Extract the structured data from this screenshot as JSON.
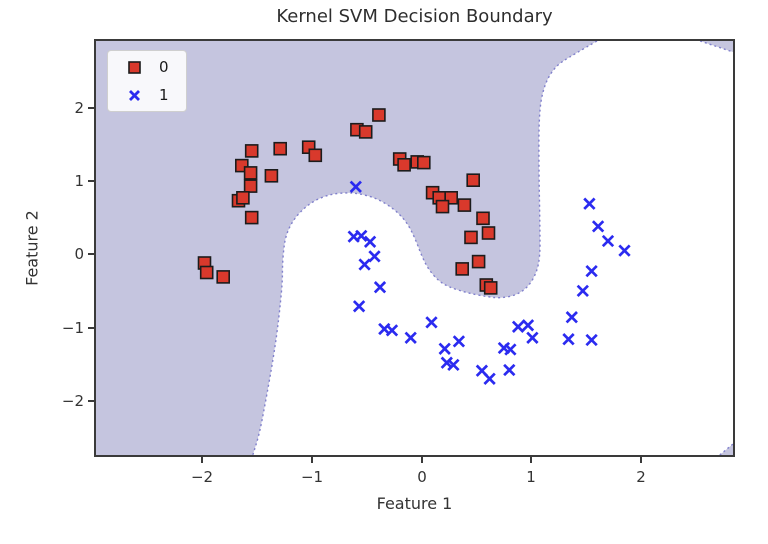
{
  "figure": {
    "title": "Kernel SVM Decision Boundary"
  },
  "axes": {
    "xlabel": "Feature 1",
    "ylabel": "Feature 2",
    "x_ticks": [
      "−2",
      "−1",
      "0",
      "1",
      "2"
    ],
    "y_ticks": [
      "2",
      "1",
      "0",
      "−1",
      "−2"
    ]
  },
  "legend": {
    "items": [
      {
        "label": "0",
        "marker": "square-icon",
        "color": "#d9392c"
      },
      {
        "label": "1",
        "marker": "x-icon",
        "color": "#2b2bf0"
      }
    ]
  },
  "chart_data": {
    "type": "scatter",
    "title": "Kernel SVM Decision Boundary",
    "xlabel": "Feature 1",
    "ylabel": "Feature 2",
    "xlim": [
      -2.97,
      2.84
    ],
    "ylim": [
      -2.74,
      2.91
    ],
    "x_tick_values": [
      -2,
      -1,
      0,
      1,
      2
    ],
    "y_tick_values": [
      2,
      1,
      0,
      -1,
      -2
    ],
    "grid": false,
    "legend_position": "upper left",
    "series": [
      {
        "name": "0",
        "marker": "square",
        "color": "#d9392c",
        "edge_color": "#1c1c1c",
        "points": [
          [
            -1.55,
            1.41
          ],
          [
            -1.29,
            1.44
          ],
          [
            -1.64,
            1.21
          ],
          [
            -1.56,
            1.11
          ],
          [
            -1.37,
            1.07
          ],
          [
            -1.56,
            0.93
          ],
          [
            -1.67,
            0.73
          ],
          [
            -1.63,
            0.77
          ],
          [
            -1.55,
            0.5
          ],
          [
            -1.03,
            1.46
          ],
          [
            -0.97,
            1.35
          ],
          [
            -1.98,
            -0.12
          ],
          [
            -1.96,
            -0.25
          ],
          [
            -1.81,
            -0.31
          ],
          [
            -0.39,
            1.9
          ],
          [
            -0.59,
            1.7
          ],
          [
            -0.51,
            1.67
          ],
          [
            -0.2,
            1.3
          ],
          [
            -0.16,
            1.22
          ],
          [
            -0.04,
            1.26
          ],
          [
            0.02,
            1.25
          ],
          [
            0.47,
            1.01
          ],
          [
            0.1,
            0.84
          ],
          [
            0.16,
            0.77
          ],
          [
            0.27,
            0.77
          ],
          [
            0.19,
            0.65
          ],
          [
            0.39,
            0.67
          ],
          [
            0.56,
            0.49
          ],
          [
            0.45,
            0.23
          ],
          [
            0.61,
            0.29
          ],
          [
            0.52,
            -0.1
          ],
          [
            0.37,
            -0.2
          ],
          [
            0.59,
            -0.42
          ],
          [
            0.63,
            -0.46
          ]
        ]
      },
      {
        "name": "1",
        "marker": "x",
        "color": "#2b2bf0",
        "points": [
          [
            -0.6,
            0.92
          ],
          [
            -0.62,
            0.24
          ],
          [
            -0.55,
            0.25
          ],
          [
            -0.47,
            0.17
          ],
          [
            -0.43,
            -0.03
          ],
          [
            -0.52,
            -0.14
          ],
          [
            -0.38,
            -0.45
          ],
          [
            -0.57,
            -0.71
          ],
          [
            -0.34,
            -1.02
          ],
          [
            -0.27,
            -1.04
          ],
          [
            -0.1,
            -1.14
          ],
          [
            0.09,
            -0.93
          ],
          [
            0.21,
            -1.29
          ],
          [
            0.34,
            -1.19
          ],
          [
            0.23,
            -1.48
          ],
          [
            0.29,
            -1.51
          ],
          [
            0.55,
            -1.59
          ],
          [
            0.62,
            -1.7
          ],
          [
            0.8,
            -1.58
          ],
          [
            0.75,
            -1.28
          ],
          [
            0.81,
            -1.3
          ],
          [
            0.88,
            -0.99
          ],
          [
            0.97,
            -0.97
          ],
          [
            1.01,
            -1.14
          ],
          [
            1.34,
            -1.16
          ],
          [
            1.55,
            -1.17
          ],
          [
            1.37,
            -0.86
          ],
          [
            1.47,
            -0.5
          ],
          [
            1.55,
            -0.23
          ],
          [
            1.53,
            0.69
          ],
          [
            1.61,
            0.38
          ],
          [
            1.7,
            0.18
          ],
          [
            1.85,
            0.05
          ]
        ]
      }
    ],
    "decision_regions": {
      "class0_region_color": "#c5c5df",
      "class1_region_color": "#ffffff",
      "boundary_line_color": "#8080cc",
      "boundary_polyline": [
        [
          1.6,
          2.91
        ],
        [
          1.38,
          2.72
        ],
        [
          1.22,
          2.57
        ],
        [
          1.12,
          2.32
        ],
        [
          1.07,
          1.95
        ],
        [
          1.07,
          1.1
        ],
        [
          1.08,
          0.3
        ],
        [
          1.08,
          -0.02
        ],
        [
          1.05,
          -0.25
        ],
        [
          0.97,
          -0.45
        ],
        [
          0.86,
          -0.56
        ],
        [
          0.72,
          -0.6
        ],
        [
          0.6,
          -0.58
        ],
        [
          0.42,
          -0.53
        ],
        [
          0.25,
          -0.45
        ],
        [
          0.15,
          -0.36
        ],
        [
          0.06,
          -0.2
        ],
        [
          0.0,
          -0.02
        ],
        [
          -0.06,
          0.22
        ],
        [
          -0.14,
          0.45
        ],
        [
          -0.26,
          0.63
        ],
        [
          -0.42,
          0.77
        ],
        [
          -0.58,
          0.83
        ],
        [
          -0.69,
          0.84
        ],
        [
          -0.83,
          0.82
        ],
        [
          -0.97,
          0.74
        ],
        [
          -1.08,
          0.62
        ],
        [
          -1.18,
          0.45
        ],
        [
          -1.24,
          0.25
        ],
        [
          -1.26,
          0.05
        ],
        [
          -1.27,
          -0.18
        ],
        [
          -1.27,
          -0.39
        ],
        [
          -1.3,
          -0.85
        ],
        [
          -1.35,
          -1.4
        ],
        [
          -1.43,
          -2.07
        ],
        [
          -1.48,
          -2.45
        ],
        [
          -1.54,
          -2.74
        ]
      ],
      "white_region_closing_points": [
        [
          2.72,
          -2.74
        ],
        [
          2.84,
          -2.59
        ],
        [
          2.84,
          2.76
        ],
        [
          2.54,
          2.91
        ]
      ]
    }
  }
}
